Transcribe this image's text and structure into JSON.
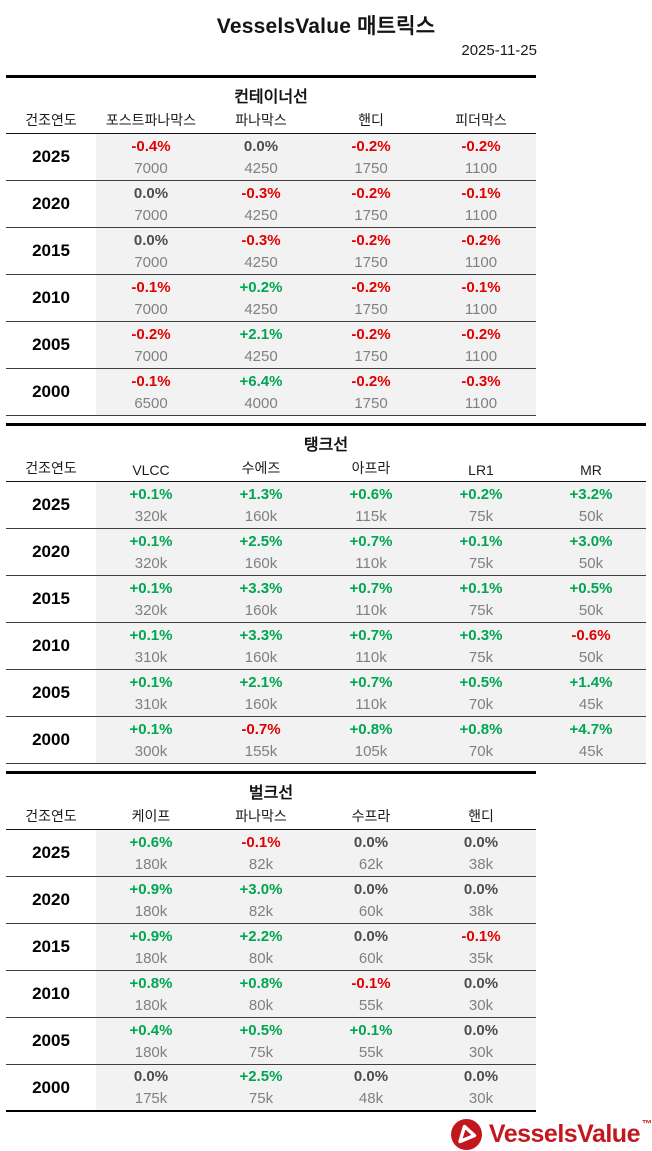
{
  "page": {
    "title": "VesselsValue 매트릭스",
    "date": "2025-11-25"
  },
  "colors": {
    "positive": "#00a651",
    "negative": "#e00000",
    "neutral": "#4d4d4d",
    "value_gray": "#808080",
    "row_bg": "#f2f2f2",
    "brand_red": "#c2171d"
  },
  "year_header": "건조연도",
  "sections": [
    {
      "title": "컨테이너선",
      "columns": [
        "포스트파나막스",
        "파나막스",
        "핸디",
        "피더막스"
      ],
      "rows": [
        {
          "year": "2025",
          "cells": [
            {
              "pct": "-0.4%",
              "trend": "neg",
              "value": "7000"
            },
            {
              "pct": "0.0%",
              "trend": "zero",
              "value": "4250"
            },
            {
              "pct": "-0.2%",
              "trend": "neg",
              "value": "1750"
            },
            {
              "pct": "-0.2%",
              "trend": "neg",
              "value": "1100"
            }
          ]
        },
        {
          "year": "2020",
          "cells": [
            {
              "pct": "0.0%",
              "trend": "zero",
              "value": "7000"
            },
            {
              "pct": "-0.3%",
              "trend": "neg",
              "value": "4250"
            },
            {
              "pct": "-0.2%",
              "trend": "neg",
              "value": "1750"
            },
            {
              "pct": "-0.1%",
              "trend": "neg",
              "value": "1100"
            }
          ]
        },
        {
          "year": "2015",
          "cells": [
            {
              "pct": "0.0%",
              "trend": "zero",
              "value": "7000"
            },
            {
              "pct": "-0.3%",
              "trend": "neg",
              "value": "4250"
            },
            {
              "pct": "-0.2%",
              "trend": "neg",
              "value": "1750"
            },
            {
              "pct": "-0.2%",
              "trend": "neg",
              "value": "1100"
            }
          ]
        },
        {
          "year": "2010",
          "cells": [
            {
              "pct": "-0.1%",
              "trend": "neg",
              "value": "7000"
            },
            {
              "pct": "+0.2%",
              "trend": "pos",
              "value": "4250"
            },
            {
              "pct": "-0.2%",
              "trend": "neg",
              "value": "1750"
            },
            {
              "pct": "-0.1%",
              "trend": "neg",
              "value": "1100"
            }
          ]
        },
        {
          "year": "2005",
          "cells": [
            {
              "pct": "-0.2%",
              "trend": "neg",
              "value": "7000"
            },
            {
              "pct": "+2.1%",
              "trend": "pos",
              "value": "4250"
            },
            {
              "pct": "-0.2%",
              "trend": "neg",
              "value": "1750"
            },
            {
              "pct": "-0.2%",
              "trend": "neg",
              "value": "1100"
            }
          ]
        },
        {
          "year": "2000",
          "cells": [
            {
              "pct": "-0.1%",
              "trend": "neg",
              "value": "6500"
            },
            {
              "pct": "+6.4%",
              "trend": "pos",
              "value": "4000"
            },
            {
              "pct": "-0.2%",
              "trend": "neg",
              "value": "1750"
            },
            {
              "pct": "-0.3%",
              "trend": "neg",
              "value": "1100"
            }
          ]
        }
      ]
    },
    {
      "title": "탱크선",
      "columns": [
        "VLCC",
        "수에즈",
        "아프라",
        "LR1",
        "MR"
      ],
      "rows": [
        {
          "year": "2025",
          "cells": [
            {
              "pct": "+0.1%",
              "trend": "pos",
              "value": "320k"
            },
            {
              "pct": "+1.3%",
              "trend": "pos",
              "value": "160k"
            },
            {
              "pct": "+0.6%",
              "trend": "pos",
              "value": "115k"
            },
            {
              "pct": "+0.2%",
              "trend": "pos",
              "value": "75k"
            },
            {
              "pct": "+3.2%",
              "trend": "pos",
              "value": "50k"
            }
          ]
        },
        {
          "year": "2020",
          "cells": [
            {
              "pct": "+0.1%",
              "trend": "pos",
              "value": "320k"
            },
            {
              "pct": "+2.5%",
              "trend": "pos",
              "value": "160k"
            },
            {
              "pct": "+0.7%",
              "trend": "pos",
              "value": "110k"
            },
            {
              "pct": "+0.1%",
              "trend": "pos",
              "value": "75k"
            },
            {
              "pct": "+3.0%",
              "trend": "pos",
              "value": "50k"
            }
          ]
        },
        {
          "year": "2015",
          "cells": [
            {
              "pct": "+0.1%",
              "trend": "pos",
              "value": "320k"
            },
            {
              "pct": "+3.3%",
              "trend": "pos",
              "value": "160k"
            },
            {
              "pct": "+0.7%",
              "trend": "pos",
              "value": "110k"
            },
            {
              "pct": "+0.1%",
              "trend": "pos",
              "value": "75k"
            },
            {
              "pct": "+0.5%",
              "trend": "pos",
              "value": "50k"
            }
          ]
        },
        {
          "year": "2010",
          "cells": [
            {
              "pct": "+0.1%",
              "trend": "pos",
              "value": "310k"
            },
            {
              "pct": "+3.3%",
              "trend": "pos",
              "value": "160k"
            },
            {
              "pct": "+0.7%",
              "trend": "pos",
              "value": "110k"
            },
            {
              "pct": "+0.3%",
              "trend": "pos",
              "value": "75k"
            },
            {
              "pct": "-0.6%",
              "trend": "neg",
              "value": "50k"
            }
          ]
        },
        {
          "year": "2005",
          "cells": [
            {
              "pct": "+0.1%",
              "trend": "pos",
              "value": "310k"
            },
            {
              "pct": "+2.1%",
              "trend": "pos",
              "value": "160k"
            },
            {
              "pct": "+0.7%",
              "trend": "pos",
              "value": "110k"
            },
            {
              "pct": "+0.5%",
              "trend": "pos",
              "value": "70k"
            },
            {
              "pct": "+1.4%",
              "trend": "pos",
              "value": "45k"
            }
          ]
        },
        {
          "year": "2000",
          "cells": [
            {
              "pct": "+0.1%",
              "trend": "pos",
              "value": "300k"
            },
            {
              "pct": "-0.7%",
              "trend": "neg",
              "value": "155k"
            },
            {
              "pct": "+0.8%",
              "trend": "pos",
              "value": "105k"
            },
            {
              "pct": "+0.8%",
              "trend": "pos",
              "value": "70k"
            },
            {
              "pct": "+4.7%",
              "trend": "pos",
              "value": "45k"
            }
          ]
        }
      ]
    },
    {
      "title": "벌크선",
      "columns": [
        "케이프",
        "파나막스",
        "수프라",
        "핸디"
      ],
      "rows": [
        {
          "year": "2025",
          "cells": [
            {
              "pct": "+0.6%",
              "trend": "pos",
              "value": "180k"
            },
            {
              "pct": "-0.1%",
              "trend": "neg",
              "value": "82k"
            },
            {
              "pct": "0.0%",
              "trend": "zero",
              "value": "62k"
            },
            {
              "pct": "0.0%",
              "trend": "zero",
              "value": "38k"
            }
          ]
        },
        {
          "year": "2020",
          "cells": [
            {
              "pct": "+0.9%",
              "trend": "pos",
              "value": "180k"
            },
            {
              "pct": "+3.0%",
              "trend": "pos",
              "value": "82k"
            },
            {
              "pct": "0.0%",
              "trend": "zero",
              "value": "60k"
            },
            {
              "pct": "0.0%",
              "trend": "zero",
              "value": "38k"
            }
          ]
        },
        {
          "year": "2015",
          "cells": [
            {
              "pct": "+0.9%",
              "trend": "pos",
              "value": "180k"
            },
            {
              "pct": "+2.2%",
              "trend": "pos",
              "value": "80k"
            },
            {
              "pct": "0.0%",
              "trend": "zero",
              "value": "60k"
            },
            {
              "pct": "-0.1%",
              "trend": "neg",
              "value": "35k"
            }
          ]
        },
        {
          "year": "2010",
          "cells": [
            {
              "pct": "+0.8%",
              "trend": "pos",
              "value": "180k"
            },
            {
              "pct": "+0.8%",
              "trend": "pos",
              "value": "80k"
            },
            {
              "pct": "-0.1%",
              "trend": "neg",
              "value": "55k"
            },
            {
              "pct": "0.0%",
              "trend": "zero",
              "value": "30k"
            }
          ]
        },
        {
          "year": "2005",
          "cells": [
            {
              "pct": "+0.4%",
              "trend": "pos",
              "value": "180k"
            },
            {
              "pct": "+0.5%",
              "trend": "pos",
              "value": "75k"
            },
            {
              "pct": "+0.1%",
              "trend": "pos",
              "value": "55k"
            },
            {
              "pct": "0.0%",
              "trend": "zero",
              "value": "30k"
            }
          ]
        },
        {
          "year": "2000",
          "cells": [
            {
              "pct": "0.0%",
              "trend": "zero",
              "value": "175k"
            },
            {
              "pct": "+2.5%",
              "trend": "pos",
              "value": "75k"
            },
            {
              "pct": "0.0%",
              "trend": "zero",
              "value": "48k"
            },
            {
              "pct": "0.0%",
              "trend": "zero",
              "value": "30k"
            }
          ]
        }
      ]
    }
  ],
  "footer": {
    "brand": "VesselsValue",
    "trademark": "™",
    "logo_icon": "vesselsvalue-circle-triangle"
  }
}
